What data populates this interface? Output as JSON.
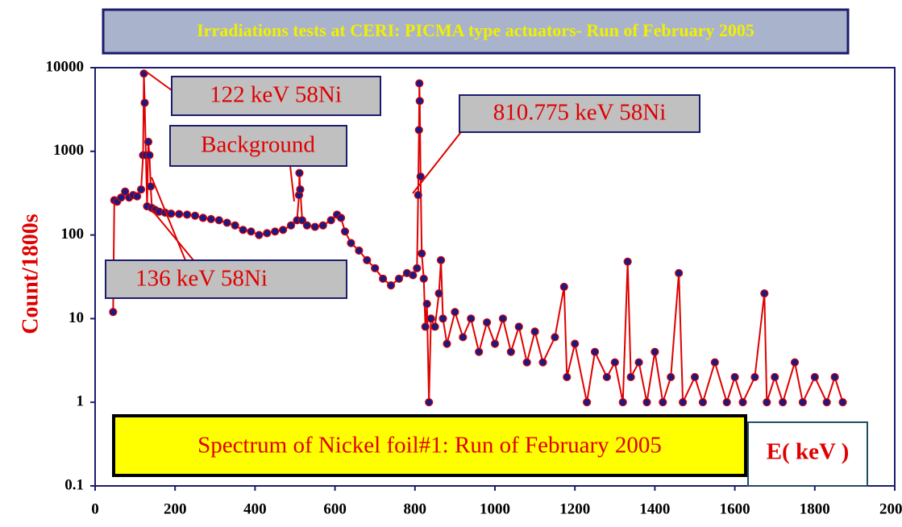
{
  "chart_data": {
    "type": "line",
    "title": "Irradiations tests at CERI: PICMA type actuators- Run of February 2005",
    "ylabel": "Count/1800s",
    "xlabel": "E( keV )",
    "subtitle": "Spectrum of Nickel foil#1: Run of February 2005",
    "annotations": [
      "122 keV 58Ni",
      "Background",
      "810.775 keV 58Ni",
      "136 keV 58Ni"
    ],
    "log_y": true,
    "xlim": [
      0,
      2000
    ],
    "xticks": [
      0,
      200,
      400,
      600,
      800,
      1000,
      1200,
      1400,
      1600,
      1800,
      2000
    ],
    "ylim": [
      0.1,
      10000
    ],
    "yticks": [
      0.1,
      1,
      10,
      100,
      1000,
      10000
    ],
    "x": [
      45,
      48,
      55,
      65,
      75,
      85,
      95,
      105,
      115,
      120,
      122,
      124,
      127,
      130,
      133,
      136,
      139,
      142,
      150,
      160,
      175,
      190,
      210,
      230,
      250,
      270,
      290,
      310,
      330,
      350,
      370,
      390,
      410,
      430,
      450,
      470,
      490,
      505,
      510,
      511,
      513,
      518,
      530,
      550,
      570,
      590,
      605,
      615,
      625,
      640,
      660,
      680,
      700,
      720,
      740,
      760,
      780,
      795,
      805,
      808,
      810,
      811,
      812,
      814,
      817,
      822,
      826,
      830,
      835,
      840,
      850,
      860,
      865,
      870,
      880,
      900,
      920,
      940,
      960,
      980,
      1000,
      1020,
      1040,
      1060,
      1080,
      1100,
      1120,
      1150,
      1173,
      1180,
      1200,
      1230,
      1250,
      1280,
      1300,
      1320,
      1332,
      1340,
      1360,
      1380,
      1400,
      1420,
      1440,
      1460,
      1470,
      1500,
      1520,
      1550,
      1580,
      1600,
      1620,
      1650,
      1674,
      1680,
      1700,
      1720,
      1750,
      1770,
      1800,
      1830,
      1850,
      1870
    ],
    "series": [
      {
        "name": "Count",
        "color": "#e00000",
        "marker_color": "#1a1a80",
        "values": [
          12,
          260,
          250,
          280,
          330,
          280,
          300,
          290,
          350,
          900,
          8500,
          3800,
          900,
          220,
          1300,
          900,
          380,
          210,
          200,
          190,
          185,
          180,
          178,
          175,
          170,
          160,
          155,
          150,
          140,
          130,
          115,
          110,
          100,
          105,
          110,
          115,
          130,
          150,
          300,
          550,
          350,
          150,
          130,
          125,
          130,
          150,
          175,
          160,
          110,
          80,
          65,
          50,
          40,
          30,
          25,
          30,
          35,
          33,
          40,
          300,
          1800,
          6500,
          4000,
          500,
          60,
          30,
          8,
          15,
          1,
          10,
          8,
          20,
          50,
          10,
          5,
          12,
          6,
          10,
          4,
          9,
          5,
          10,
          4,
          8,
          3,
          7,
          3,
          6,
          24,
          2,
          5,
          1,
          4,
          2,
          3,
          1,
          48,
          2,
          3,
          1,
          4,
          1,
          2,
          35,
          1,
          2,
          1,
          3,
          1,
          2,
          1,
          2,
          20,
          1,
          2,
          1,
          3,
          1,
          2,
          1,
          2,
          1
        ]
      }
    ]
  }
}
